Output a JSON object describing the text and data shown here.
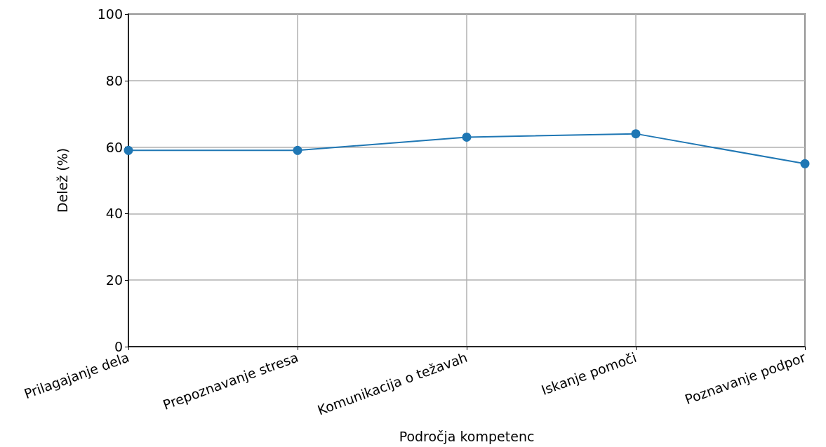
{
  "chart_data": {
    "type": "line",
    "xlabel": "Področja kompetenc",
    "ylabel": "Delež (%)",
    "categories": [
      "Prilagajanje dela",
      "Prepoznavanje stresa",
      "Komunikacija o težavah",
      "Iskanje pomoči",
      "Poznavanje podpor"
    ],
    "series": [
      {
        "color": "#1f77b4",
        "values": [
          59,
          59,
          63,
          64,
          55
        ]
      }
    ],
    "ylim": [
      0,
      100
    ],
    "yticks": [
      0,
      20,
      40,
      60,
      80,
      100
    ],
    "grid": true,
    "marker": "circle",
    "line_style": "solid"
  }
}
